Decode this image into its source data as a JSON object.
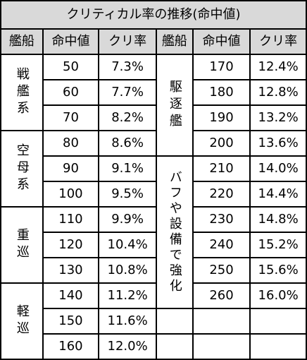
{
  "title": "クリティカル率の推移(命中値)",
  "headers": {
    "ship": "艦船",
    "accuracy": "命中値",
    "crit": "クリ率"
  },
  "left_groups": [
    {
      "label": "戦艦系",
      "rows": [
        {
          "acc": "50",
          "crit": "7.3%"
        },
        {
          "acc": "60",
          "crit": "7.7%"
        },
        {
          "acc": "70",
          "crit": "8.2%"
        }
      ]
    },
    {
      "label": "空母系",
      "rows": [
        {
          "acc": "80",
          "crit": "8.6%"
        },
        {
          "acc": "90",
          "crit": "9.1%"
        },
        {
          "acc": "100",
          "crit": "9.5%"
        }
      ]
    },
    {
      "label": "重巡",
      "rows": [
        {
          "acc": "110",
          "crit": "9.9%"
        },
        {
          "acc": "120",
          "crit": "10.4%"
        },
        {
          "acc": "130",
          "crit": "10.8%"
        }
      ]
    },
    {
      "label": "軽巡",
      "rows": [
        {
          "acc": "140",
          "crit": "11.2%"
        },
        {
          "acc": "150",
          "crit": "11.6%"
        },
        {
          "acc": "160",
          "crit": "12.0%"
        }
      ]
    }
  ],
  "right_groups": [
    {
      "label": "駆逐艦",
      "rows": [
        {
          "acc": "170",
          "crit": "12.4%"
        },
        {
          "acc": "180",
          "crit": "12.8%"
        },
        {
          "acc": "190",
          "crit": "13.2%"
        },
        {
          "acc": "200",
          "crit": "13.6%"
        }
      ]
    },
    {
      "label": "バフや設備で強化",
      "rows": [
        {
          "acc": "210",
          "crit": "14.0%"
        },
        {
          "acc": "220",
          "crit": "14.4%"
        },
        {
          "acc": "230",
          "crit": "14.8%"
        },
        {
          "acc": "240",
          "crit": "15.2%"
        },
        {
          "acc": "250",
          "crit": "15.6%"
        },
        {
          "acc": "260",
          "crit": "16.0%"
        }
      ]
    }
  ]
}
